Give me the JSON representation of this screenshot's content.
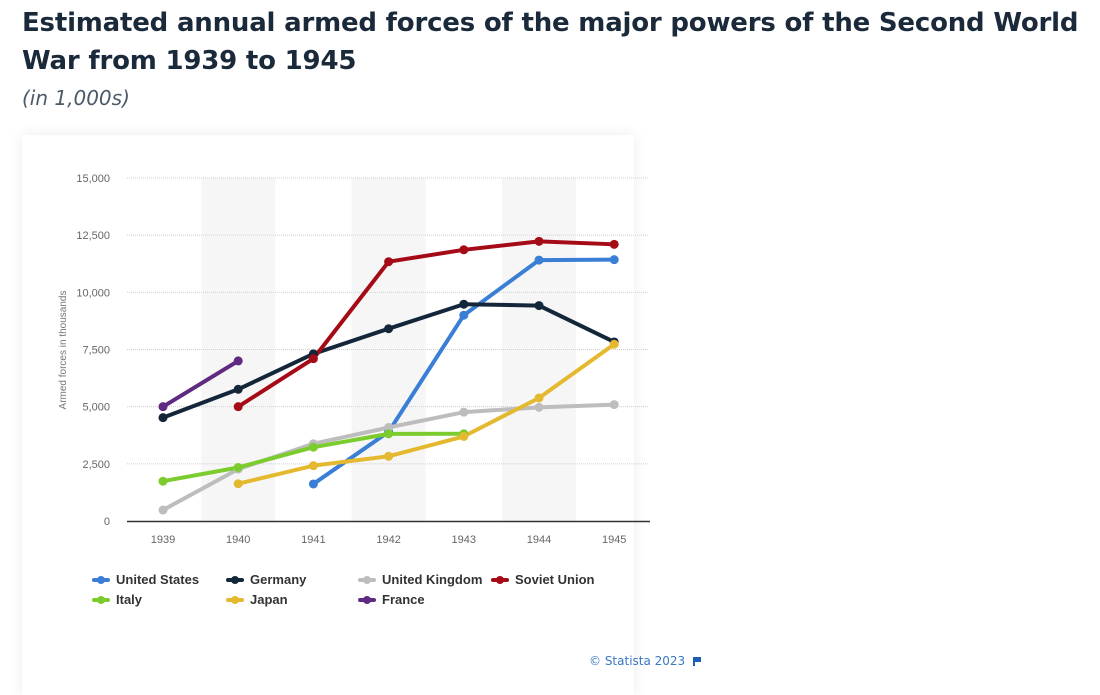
{
  "header": {
    "title": "Estimated annual armed forces of the major powers of the Second World War from 1939 to 1945",
    "subtitle": "(in 1,000s)"
  },
  "footer": {
    "credit": "© Statista 2023",
    "flag_icon": "flag-icon"
  },
  "chart_data": {
    "type": "line",
    "title": "Estimated annual armed forces of the major powers of the Second World War from 1939 to 1945",
    "subtitle": "(in 1,000s)",
    "xlabel": "",
    "ylabel": "Armed forces in thousands",
    "categories": [
      "1939",
      "1940",
      "1941",
      "1942",
      "1943",
      "1944",
      "1945"
    ],
    "ylim": [
      0,
      15000
    ],
    "yticks": [
      0,
      2500,
      5000,
      7500,
      10000,
      12500,
      15000
    ],
    "ytick_labels": [
      "0",
      "2,500",
      "5,000",
      "7,500",
      "10,000",
      "12,500",
      "15,000"
    ],
    "grid": true,
    "shaded_bands": [
      "1940",
      "1942",
      "1944"
    ],
    "legend_position": "bottom",
    "series": [
      {
        "name": "United States",
        "color": "#3a7fd5",
        "values": [
          null,
          null,
          1620,
          3900,
          9000,
          11410,
          11430
        ]
      },
      {
        "name": "Germany",
        "color": "#14263a",
        "values": [
          4520,
          5760,
          7310,
          8410,
          9480,
          9420,
          7830
        ]
      },
      {
        "name": "United Kingdom",
        "color": "#bdbdbd",
        "values": [
          480,
          2270,
          3380,
          4090,
          4760,
          4970,
          5090
        ]
      },
      {
        "name": "Soviet Union",
        "color": "#a50b17",
        "values": [
          null,
          5000,
          7100,
          11340,
          11860,
          12230,
          12100
        ]
      },
      {
        "name": "Italy",
        "color": "#7ccc2e",
        "values": [
          1740,
          2340,
          3227,
          3810,
          3815,
          null,
          null
        ]
      },
      {
        "name": "Japan",
        "color": "#e5b92f",
        "values": [
          null,
          1630,
          2420,
          2830,
          3700,
          5380,
          7730
        ]
      },
      {
        "name": "France",
        "color": "#5f2a80",
        "values": [
          5000,
          7000,
          null,
          null,
          null,
          null,
          null
        ]
      }
    ]
  }
}
